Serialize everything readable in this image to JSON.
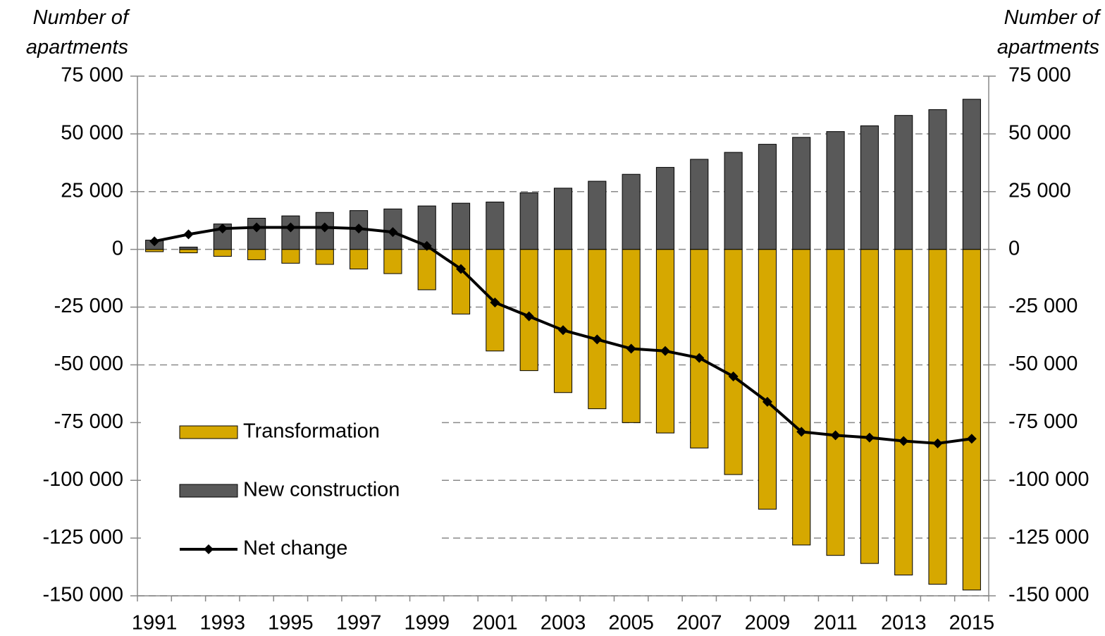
{
  "chart_data": {
    "type": "bar",
    "ylabel": "Number of apartments",
    "y2label": "Number of apartments",
    "categories": [
      1991,
      null,
      1993,
      null,
      1995,
      null,
      1997,
      null,
      1999,
      null,
      2001,
      null,
      2003,
      null,
      2005,
      null,
      2007,
      null,
      2009,
      null,
      2011,
      null,
      2013,
      null,
      2015
    ],
    "series": [
      {
        "name": "Transformation",
        "color": "#d6a800",
        "values": [
          -1000,
          -1500,
          -3000,
          -4500,
          -6000,
          -6500,
          -8500,
          -10500,
          -17500,
          -28000,
          -44000,
          -52500,
          -62000,
          -69000,
          -75000,
          -79500,
          -86000,
          -97500,
          -112500,
          -128000,
          -132500,
          -136000,
          -141000,
          -145000,
          -147500
        ]
      },
      {
        "name": "New construction",
        "color": "#595959",
        "values": [
          4000,
          1000,
          11000,
          13500,
          14500,
          16000,
          16800,
          17500,
          18800,
          20000,
          20500,
          24500,
          26500,
          29500,
          32500,
          35500,
          39000,
          42000,
          45500,
          48500,
          51000,
          53500,
          58000,
          60500,
          65000
        ]
      },
      {
        "name": "Net change",
        "color": "#000000",
        "type": "line",
        "values": [
          3500,
          6500,
          9000,
          9500,
          9500,
          9500,
          9000,
          7500,
          1500,
          -8500,
          -23000,
          -29000,
          -35000,
          -39000,
          -43000,
          -44000,
          -47000,
          -55000,
          -66000,
          -79000,
          -80500,
          -81500,
          -83000,
          -84000,
          -82000
        ]
      }
    ],
    "ylim": [
      -150000,
      75000
    ],
    "yticks": [
      {
        "value": -150000,
        "label": "-150 000"
      },
      {
        "value": -125000,
        "label": "-125 000"
      },
      {
        "value": -100000,
        "label": "-100 000"
      },
      {
        "value": -75000,
        "label": "-75 000"
      },
      {
        "value": -50000,
        "label": "-50 000"
      },
      {
        "value": -25000,
        "label": "-25 000"
      },
      0,
      {
        "value": 25000,
        "label": "25 000"
      },
      {
        "value": 50000,
        "label": "50 000"
      },
      {
        "value": 75000,
        "label": "75 000"
      }
    ],
    "y2lim": [
      -150000,
      75000
    ],
    "y2ticks": [
      {
        "value": -150000,
        "label": "-150 000"
      },
      {
        "value": -125000,
        "label": "-125 000"
      },
      {
        "value": -100000,
        "label": "-100 000"
      },
      {
        "value": -75000,
        "label": "-75 000"
      },
      {
        "value": -50000,
        "label": "-50 000"
      },
      {
        "value": -25000,
        "label": "-25 000"
      },
      0,
      {
        "value": 25000,
        "label": "25 000"
      },
      {
        "value": 50000,
        "label": "50 000"
      },
      {
        "value": 75000,
        "label": "75 000"
      }
    ],
    "grid": true,
    "legend": "lower left"
  }
}
